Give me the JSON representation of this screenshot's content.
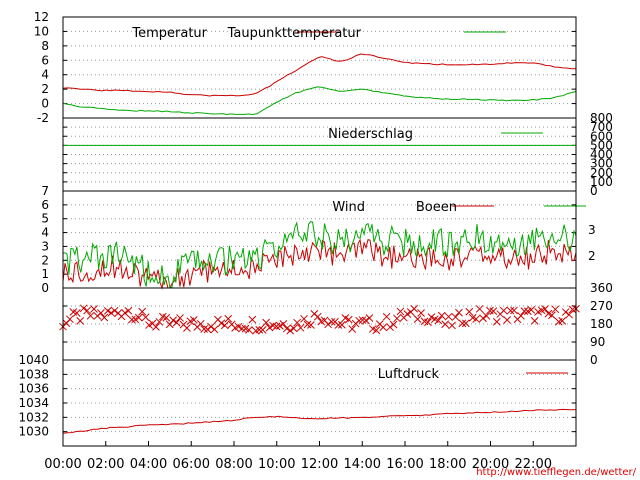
{
  "chart_data": [
    {
      "type": "line",
      "ylim": [
        -2,
        12
      ],
      "yticks": [
        -2,
        0,
        2,
        4,
        6,
        8,
        10,
        12
      ],
      "series": [
        {
          "name": "Temperatur",
          "color": "#cc0000",
          "x": [
            0,
            1,
            2,
            3,
            4,
            5,
            6,
            7,
            8,
            9,
            10,
            11,
            12,
            13,
            14,
            15,
            16,
            17,
            18,
            19,
            20,
            21,
            22,
            23,
            24
          ],
          "values": [
            2.2,
            2.0,
            1.8,
            1.8,
            1.7,
            1.6,
            1.2,
            1.1,
            1.1,
            1.3,
            3.0,
            4.8,
            6.5,
            5.8,
            6.9,
            6.3,
            5.7,
            5.5,
            5.4,
            5.4,
            5.5,
            5.6,
            5.6,
            5.1,
            4.8
          ]
        },
        {
          "name": "Taupunkttemperatur",
          "color": "#00aa00",
          "x": [
            0,
            1,
            2,
            3,
            4,
            5,
            6,
            7,
            8,
            9,
            10,
            11,
            12,
            13,
            14,
            15,
            16,
            17,
            18,
            19,
            20,
            21,
            22,
            23,
            24
          ],
          "values": [
            0.0,
            -0.5,
            -0.8,
            -1.0,
            -1.0,
            -1.1,
            -1.3,
            -1.4,
            -1.5,
            -1.5,
            0.2,
            1.6,
            2.4,
            1.6,
            2.0,
            1.5,
            1.0,
            0.8,
            0.6,
            0.6,
            0.5,
            0.4,
            0.5,
            0.8,
            1.7
          ]
        }
      ]
    },
    {
      "type": "line",
      "ylim": [
        0,
        800
      ],
      "yticks": [
        0,
        100,
        200,
        300,
        400,
        500,
        600,
        700,
        800
      ],
      "series": [
        {
          "name": "Niederschlag",
          "color": "#00aa00",
          "x": [
            0,
            24
          ],
          "values": [
            500,
            500
          ]
        }
      ]
    },
    {
      "type": "line",
      "ylim": [
        0,
        7
      ],
      "yticks": [
        0,
        1,
        2,
        3,
        4,
        5,
        6,
        7
      ],
      "right_ticks": [
        "2",
        "3"
      ],
      "series": [
        {
          "name": "Wind",
          "color": "#cc0000",
          "x": [
            0,
            1,
            2,
            3,
            4,
            5,
            6,
            7,
            8,
            9,
            10,
            11,
            12,
            13,
            14,
            15,
            16,
            17,
            18,
            19,
            20,
            21,
            22,
            23,
            24
          ],
          "values": [
            1.0,
            1.3,
            1.5,
            1.6,
            0.6,
            0.3,
            1.0,
            1.3,
            1.3,
            1.4,
            2.0,
            2.6,
            2.9,
            2.2,
            2.8,
            2.2,
            2.2,
            2.0,
            2.1,
            2.4,
            2.3,
            2.1,
            2.2,
            2.8,
            1.9
          ]
        },
        {
          "name": "Boeen",
          "color": "#00aa00",
          "x": [
            0,
            1,
            2,
            3,
            4,
            5,
            6,
            7,
            8,
            9,
            10,
            11,
            12,
            13,
            14,
            15,
            16,
            17,
            18,
            19,
            20,
            21,
            22,
            23,
            24
          ],
          "values": [
            1.8,
            2.1,
            2.2,
            2.3,
            1.0,
            0.7,
            1.8,
            2.0,
            2.0,
            2.2,
            3.0,
            3.8,
            3.9,
            3.3,
            3.9,
            3.4,
            3.3,
            3.1,
            3.3,
            3.5,
            3.6,
            3.3,
            3.6,
            4.1,
            3.1
          ]
        }
      ]
    },
    {
      "type": "scatter",
      "ylim": [
        0,
        360
      ],
      "yticks": [
        0,
        90,
        180,
        270,
        360
      ],
      "series": [
        {
          "color": "#cc0000",
          "x": [
            0,
            1,
            2,
            3,
            4,
            5,
            6,
            7,
            8,
            9,
            10,
            11,
            12,
            13,
            14,
            15,
            16,
            17,
            18,
            19,
            20,
            21,
            22,
            23,
            24
          ],
          "values": [
            190,
            225,
            225,
            250,
            190,
            180,
            180,
            180,
            180,
            180,
            180,
            180,
            225,
            180,
            180,
            180,
            225,
            225,
            180,
            225,
            225,
            225,
            225,
            225,
            225
          ]
        }
      ]
    },
    {
      "type": "line",
      "ylim": [
        1028,
        1040
      ],
      "yticks": [
        1030,
        1032,
        1034,
        1036,
        1038,
        1040
      ],
      "series": [
        {
          "name": "Luftdruck",
          "color": "#cc0000",
          "x": [
            0,
            1,
            2,
            3,
            4,
            5,
            6,
            7,
            8,
            9,
            10,
            11,
            12,
            13,
            14,
            15,
            16,
            17,
            18,
            19,
            20,
            21,
            22,
            23,
            24
          ],
          "values": [
            1029.8,
            1030.1,
            1030.5,
            1030.7,
            1030.9,
            1031.0,
            1031.2,
            1031.4,
            1031.6,
            1032.0,
            1032.1,
            1031.9,
            1031.8,
            1031.9,
            1032.0,
            1032.1,
            1032.2,
            1032.3,
            1032.5,
            1032.6,
            1032.7,
            1032.8,
            1033.0,
            1033.0,
            1033.1
          ]
        }
      ]
    }
  ],
  "x_ticks": [
    "00:00",
    "02:00",
    "04:00",
    "06:00",
    "08:00",
    "10:00",
    "12:00",
    "14:00",
    "16:00",
    "18:00",
    "20:00",
    "22:00"
  ],
  "url": "http://www.tiefflegen.de/wetter/"
}
